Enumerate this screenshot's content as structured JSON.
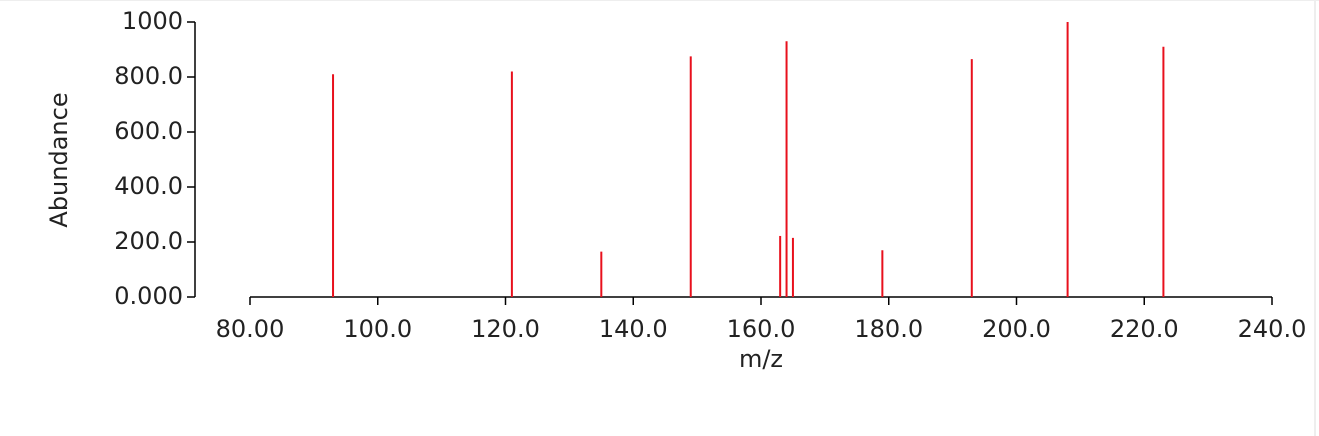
{
  "chart_data": {
    "type": "stem",
    "x_label": "m/z",
    "y_label": "Abundance",
    "color": "#e8101c",
    "x": [
      93,
      121,
      135,
      149,
      163,
      164,
      165,
      179,
      193,
      208,
      223
    ],
    "values": [
      810,
      820,
      165,
      875,
      222,
      930,
      215,
      170,
      865,
      1000,
      910
    ],
    "xlim": [
      80,
      240
    ],
    "xticks": [
      {
        "value": 80,
        "label": "80.00"
      },
      {
        "value": 100,
        "label": "100.0"
      },
      {
        "value": 120,
        "label": "120.0"
      },
      {
        "value": 140,
        "label": "140.0"
      },
      {
        "value": 160,
        "label": "160.0"
      },
      {
        "value": 180,
        "label": "180.0"
      },
      {
        "value": 200,
        "label": "200.0"
      },
      {
        "value": 220,
        "label": "220.0"
      },
      {
        "value": 240,
        "label": "240.0"
      }
    ],
    "ylim": [
      0,
      1000
    ],
    "yticks": [
      {
        "value": 0,
        "label": "0.000"
      },
      {
        "value": 200,
        "label": "200.0"
      },
      {
        "value": 400,
        "label": "400.0"
      },
      {
        "value": 600,
        "label": "600.0"
      },
      {
        "value": 800,
        "label": "800.0"
      },
      1000
    ]
  }
}
